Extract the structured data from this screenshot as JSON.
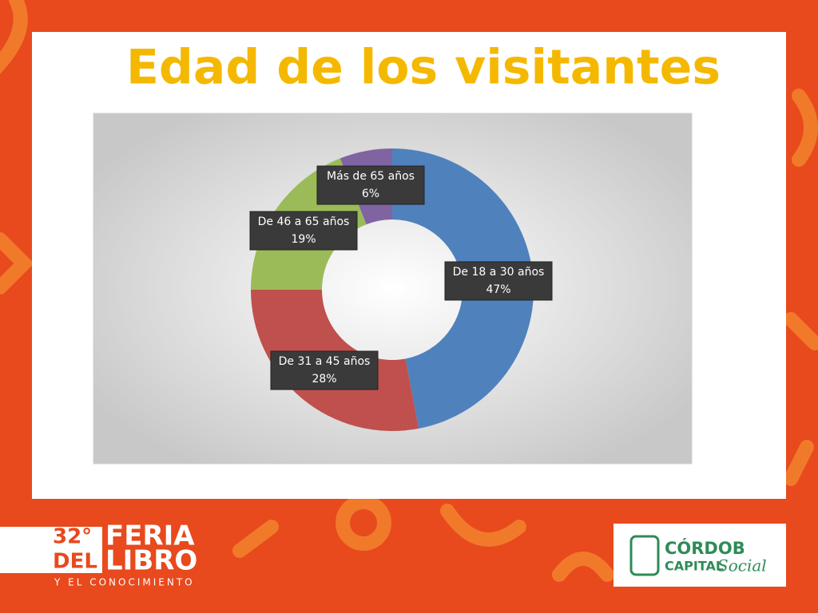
{
  "chart_data": {
    "type": "donut",
    "title": "Edad de los visitantes",
    "categories": [
      "De 18 a 30 años",
      "De 31 a 45 años",
      "De 46 a 65 años",
      "Más de 65 años"
    ],
    "values": [
      47,
      28,
      19,
      6
    ],
    "value_labels": [
      "47%",
      "28%",
      "19%",
      "6%"
    ],
    "colors": [
      "#4f81bd",
      "#c0504d",
      "#9bbb59",
      "#8064a2"
    ]
  },
  "footer": {
    "event": {
      "edition": "32°",
      "word1": "FERIA",
      "word2": "DEL",
      "word3": "LIBRO",
      "tagline": "Y EL CONOCIMIENTO"
    },
    "sponsor": {
      "line1": "CÓRDOB",
      "line2": "CAPITAL",
      "script": "Social"
    }
  }
}
